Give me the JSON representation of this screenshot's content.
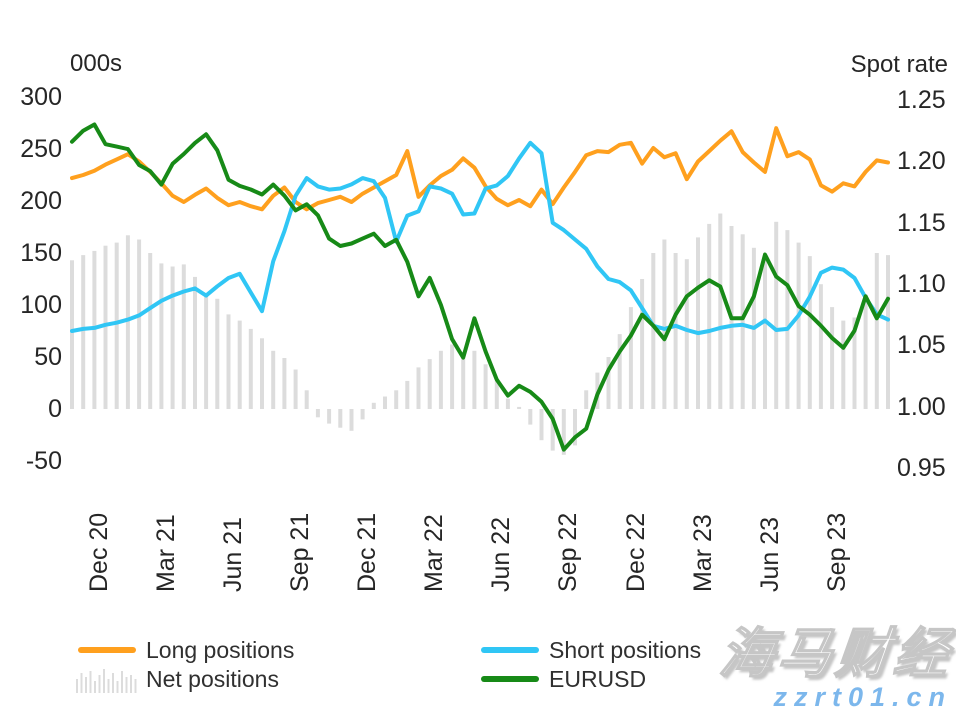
{
  "watermark": {
    "brand": "海马财经",
    "site": "zzrt01.cn"
  },
  "chart_data": {
    "type": "line",
    "subtype": "dual-axis combo: three lines on left axis / right axis, plus gray bar series",
    "title": "",
    "x_unit": "semi-monthly observations, Dec 2020 - Dec 2023",
    "grid": false,
    "legend_position": "bottom",
    "x_tick_labels": [
      "Dec 20",
      "Mar 21",
      "Jun 21",
      "Sep 21",
      "Dec 21",
      "Mar 22",
      "Jun 22",
      "Sep 22",
      "Dec 22",
      "Mar 23",
      "Jun 23",
      "Sep 23"
    ],
    "x_tick_indices": [
      0,
      6,
      12,
      18,
      24,
      30,
      36,
      42,
      48,
      54,
      60,
      66
    ],
    "left_axis": {
      "title": "000s",
      "range": [
        -50,
        300
      ],
      "ticks": [
        300,
        250,
        200,
        150,
        100,
        50,
        0,
        -50
      ]
    },
    "right_axis": {
      "title": "Spot rate",
      "range": [
        0.95,
        1.25
      ],
      "ticks": [
        "1.25",
        "1.20",
        "1.15",
        "1.10",
        "1.05",
        "1.00",
        "0.95"
      ]
    },
    "series": [
      {
        "name": "Long positions",
        "type": "line",
        "axis": "left",
        "color": "#FFA01E",
        "values": [
          222,
          225,
          229,
          235,
          240,
          245,
          238,
          228,
          217,
          205,
          199,
          206,
          212,
          203,
          196,
          199,
          195,
          192,
          205,
          213,
          199,
          192,
          198,
          201,
          204,
          199,
          207,
          213,
          219,
          225,
          248,
          204,
          215,
          224,
          230,
          241,
          232,
          214,
          202,
          196,
          201,
          195,
          211,
          197,
          213,
          228,
          244,
          248,
          247,
          254,
          256,
          236,
          251,
          242,
          246,
          221,
          238,
          248,
          258,
          267,
          247,
          237,
          228,
          270,
          243,
          247,
          240,
          215,
          209,
          217,
          214,
          228,
          239,
          237
        ]
      },
      {
        "name": "Short positions",
        "type": "line",
        "axis": "left",
        "color": "#30C6F5",
        "values": [
          75,
          77,
          78,
          81,
          83,
          86,
          90,
          97,
          104,
          109,
          113,
          116,
          109,
          118,
          126,
          130,
          112,
          94,
          142,
          171,
          205,
          222,
          214,
          211,
          212,
          216,
          222,
          219,
          203,
          161,
          186,
          190,
          214,
          212,
          207,
          187,
          188,
          212,
          215,
          224,
          241,
          256,
          246,
          179,
          172,
          163,
          154,
          137,
          125,
          122,
          114,
          97,
          80,
          77,
          80,
          76,
          73,
          75,
          78,
          80,
          81,
          78,
          85,
          76,
          77,
          90,
          108,
          131,
          136,
          134,
          126,
          107,
          91,
          86
        ]
      },
      {
        "name": "Net positions",
        "type": "bar",
        "axis": "left",
        "color": "#DCDCDC",
        "values": [
          143,
          148,
          152,
          157,
          160,
          167,
          163,
          150,
          140,
          137,
          139,
          127,
          110,
          106,
          91,
          85,
          77,
          68,
          56,
          49,
          38,
          18,
          -8,
          -14,
          -18,
          -21,
          -10,
          6,
          12,
          18,
          27,
          40,
          48,
          56,
          62,
          49,
          56,
          43,
          27,
          10,
          2,
          -15,
          -30,
          -40,
          -44,
          -35,
          18,
          35,
          50,
          72,
          98,
          125,
          150,
          163,
          150,
          144,
          165,
          178,
          188,
          176,
          168,
          155,
          144,
          180,
          172,
          160,
          147,
          120,
          98,
          85,
          88,
          110,
          150,
          148
        ]
      },
      {
        "name": "EURUSD",
        "type": "line",
        "axis": "right",
        "color": "#178A17",
        "values": [
          1.216,
          1.225,
          1.23,
          1.214,
          1.212,
          1.21,
          1.197,
          1.192,
          1.181,
          1.198,
          1.206,
          1.215,
          1.222,
          1.209,
          1.185,
          1.18,
          1.177,
          1.173,
          1.181,
          1.172,
          1.16,
          1.165,
          1.156,
          1.137,
          1.131,
          1.133,
          1.137,
          1.141,
          1.131,
          1.136,
          1.118,
          1.09,
          1.105,
          1.083,
          1.055,
          1.04,
          1.072,
          1.045,
          1.022,
          1.009,
          1.017,
          1.012,
          1.004,
          0.99,
          0.965,
          0.975,
          0.982,
          1.01,
          1.03,
          1.045,
          1.058,
          1.075,
          1.066,
          1.055,
          1.075,
          1.09,
          1.097,
          1.103,
          1.098,
          1.072,
          1.072,
          1.09,
          1.124,
          1.106,
          1.099,
          1.082,
          1.075,
          1.066,
          1.056,
          1.048,
          1.062,
          1.09,
          1.072,
          1.088
        ]
      }
    ]
  }
}
